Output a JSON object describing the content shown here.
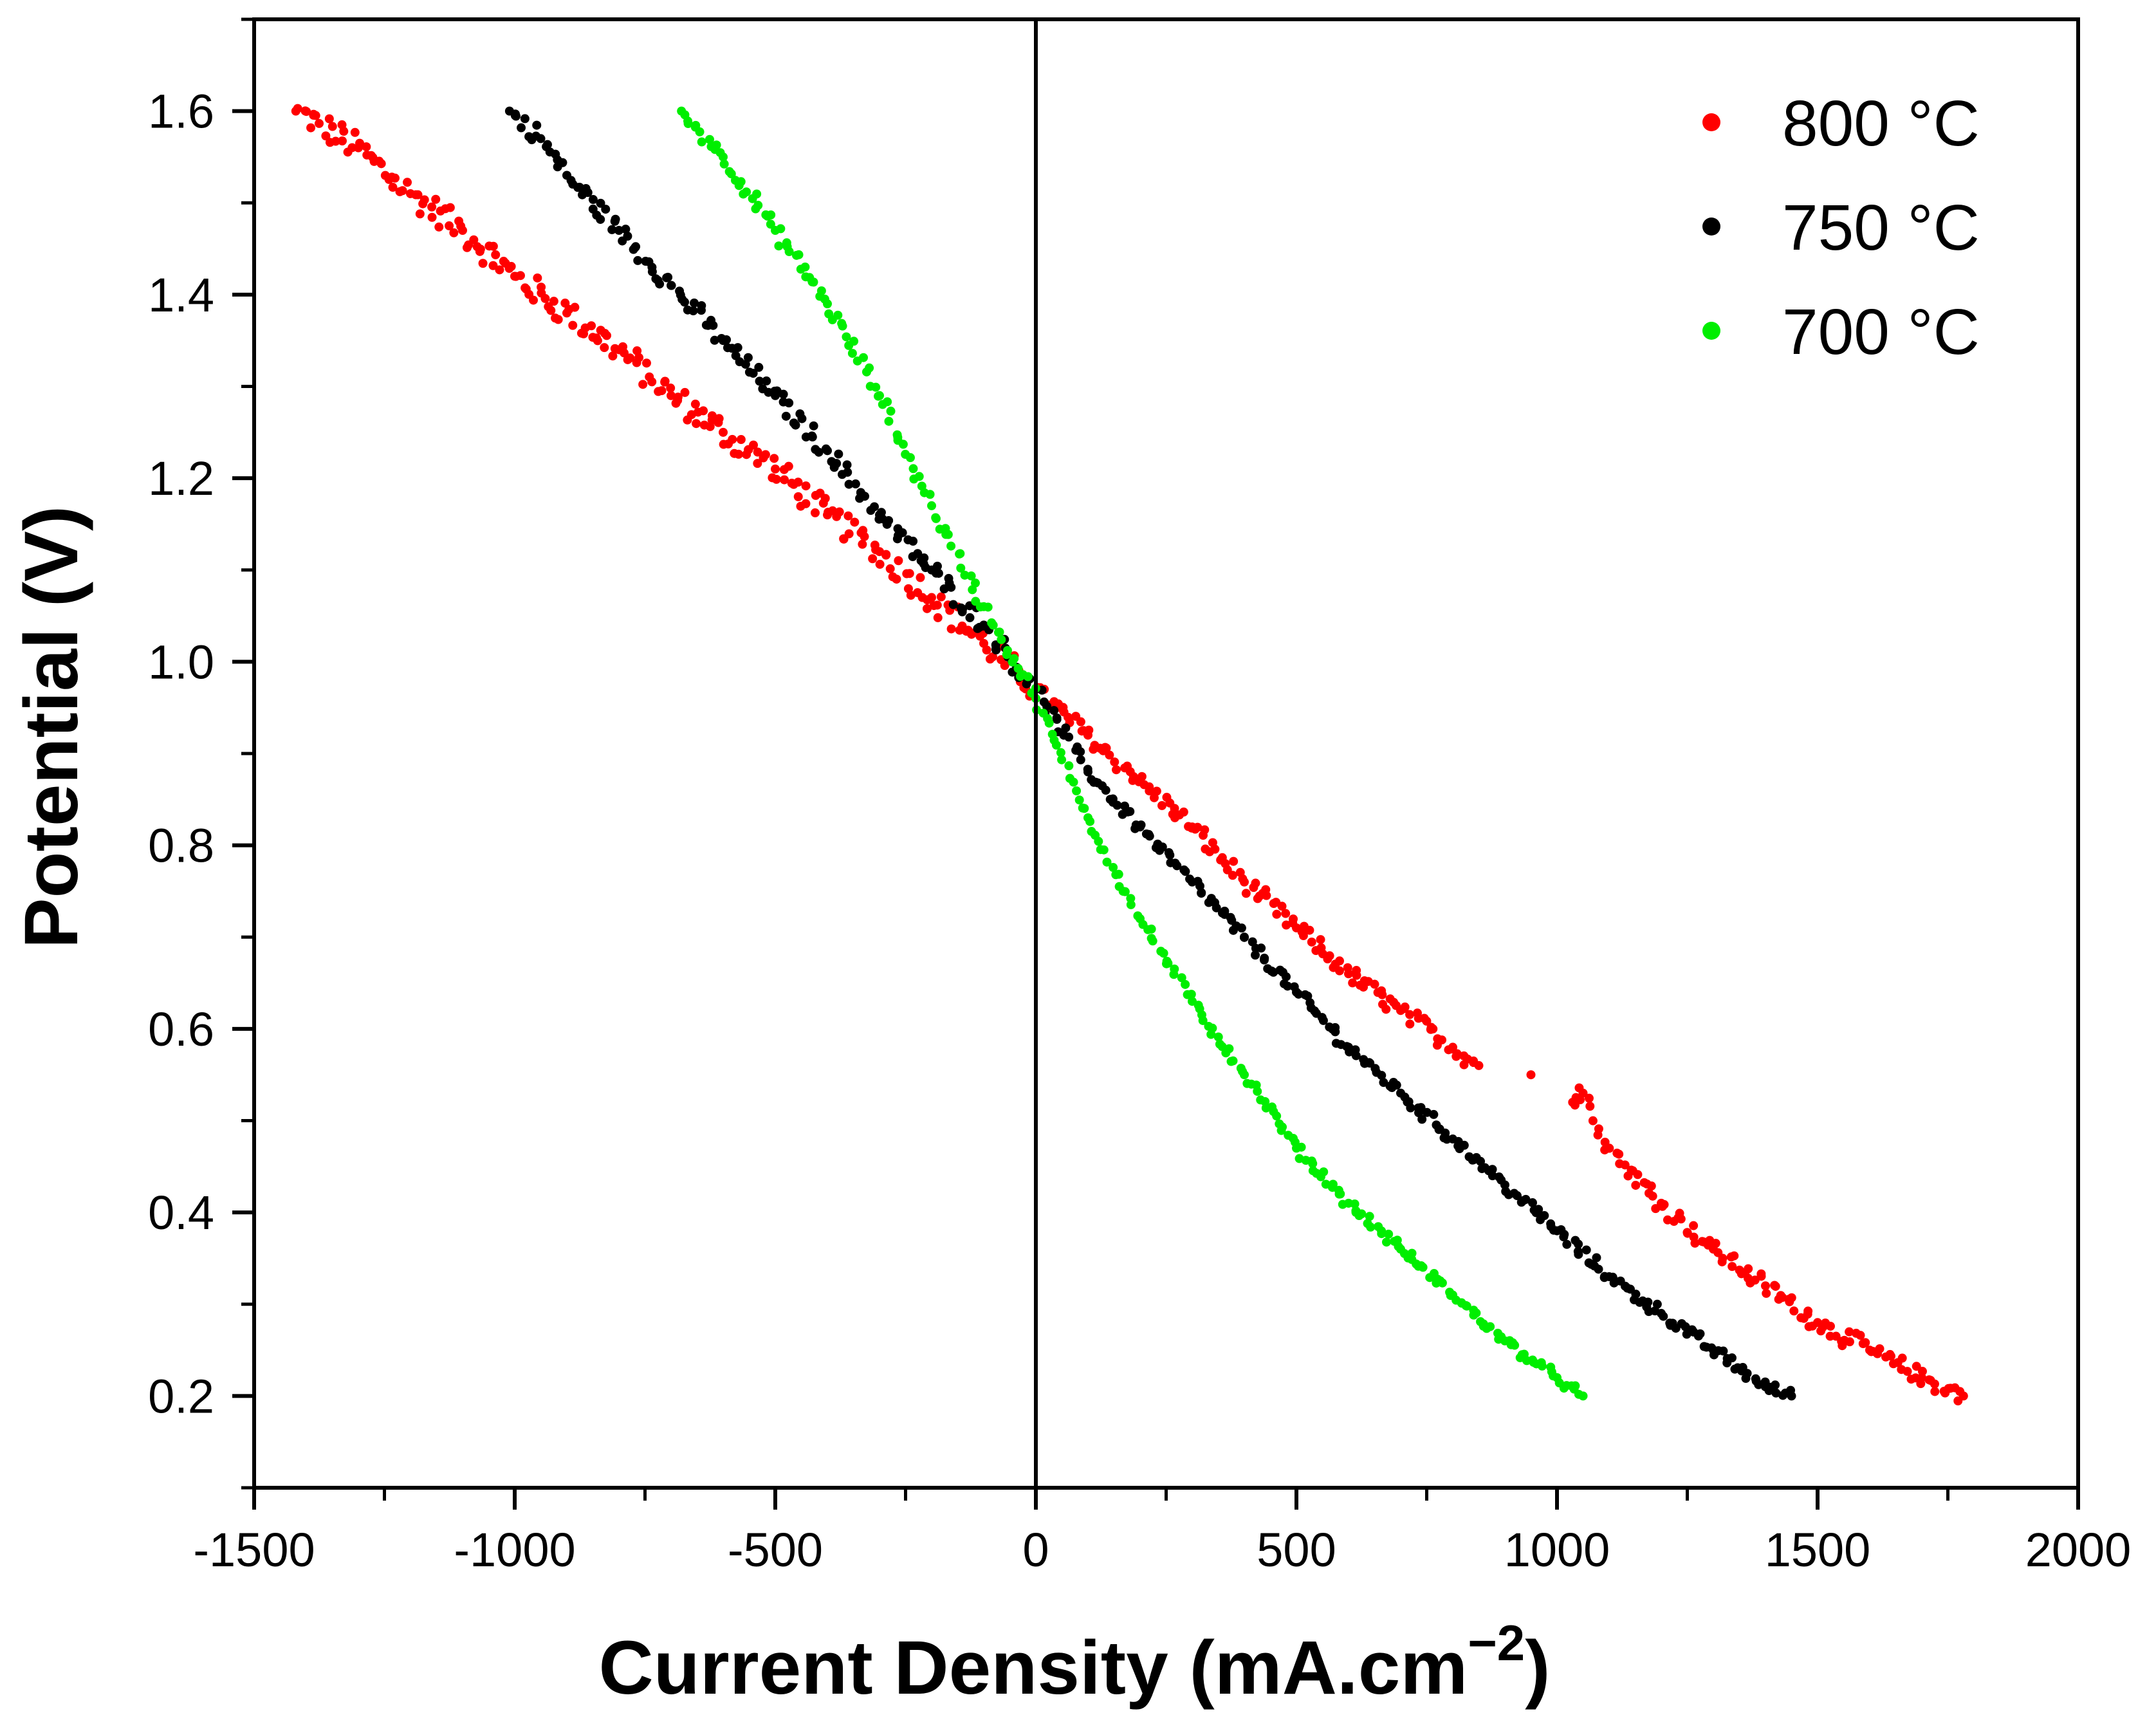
{
  "chart_data": {
    "type": "scatter",
    "title": "",
    "xlabel": "Current Density (mA.cm",
    "xlabel_sup": "−2",
    "xlabel_close": ")",
    "ylabel": "Potential (V)",
    "xlim": [
      -1500,
      2000
    ],
    "ylim": [
      0.1,
      1.7
    ],
    "x_ticks": [
      -1500,
      -1000,
      -500,
      0,
      500,
      1000,
      1500,
      2000
    ],
    "x_tick_labels": [
      "-1500",
      "-1000",
      "-500",
      "0",
      "500",
      "1000",
      "1500",
      "2000"
    ],
    "y_ticks": [
      0.2,
      0.4,
      0.6,
      0.8,
      1.0,
      1.2,
      1.4,
      1.6
    ],
    "y_tick_labels": [
      "0.2",
      "0.4",
      "0.6",
      "0.8",
      "1.0",
      "1.2",
      "1.4",
      "1.6"
    ],
    "grid": false,
    "zero_line_x": 0,
    "legend_position": "top-right",
    "series": [
      {
        "name": "800 °C",
        "color": "#ff0000",
        "x": [
          -1420,
          -1300,
          -1200,
          -1100,
          -1000,
          -900,
          -800,
          -700,
          -600,
          -500,
          -400,
          -300,
          -200,
          -100,
          0,
          100,
          200,
          300,
          400,
          500,
          600,
          700,
          800,
          850,
          950,
          1030,
          1050,
          1100,
          1200,
          1300,
          1400,
          1500,
          1600,
          1700,
          1780
        ],
        "y": [
          1.6,
          1.56,
          1.51,
          1.47,
          1.42,
          1.38,
          1.34,
          1.29,
          1.25,
          1.21,
          1.16,
          1.12,
          1.07,
          1.02,
          0.97,
          0.92,
          0.87,
          0.82,
          0.76,
          0.71,
          0.66,
          0.62,
          0.58,
          0.56,
          0.55,
          0.52,
          0.53,
          0.47,
          0.41,
          0.36,
          0.32,
          0.28,
          0.25,
          0.22,
          0.2
        ]
      },
      {
        "name": "750 °C",
        "color": "#000000",
        "x": [
          -1010,
          -950,
          -900,
          -800,
          -700,
          -600,
          -500,
          -400,
          -300,
          -200,
          -100,
          0,
          100,
          200,
          300,
          400,
          500,
          600,
          700,
          800,
          900,
          1000,
          1100,
          1200,
          1300,
          1400,
          1450
        ],
        "y": [
          1.6,
          1.57,
          1.53,
          1.47,
          1.41,
          1.35,
          1.29,
          1.23,
          1.16,
          1.1,
          1.04,
          0.97,
          0.88,
          0.82,
          0.76,
          0.7,
          0.64,
          0.58,
          0.53,
          0.48,
          0.43,
          0.38,
          0.33,
          0.29,
          0.25,
          0.21,
          0.2
        ]
      },
      {
        "name": "700 °C",
        "color": "#00ee00",
        "x": [
          -680,
          -600,
          -500,
          -400,
          -300,
          -200,
          -100,
          0,
          100,
          200,
          300,
          400,
          500,
          600,
          700,
          800,
          900,
          1000,
          1050
        ],
        "y": [
          1.6,
          1.55,
          1.47,
          1.39,
          1.29,
          1.17,
          1.06,
          0.96,
          0.83,
          0.72,
          0.63,
          0.55,
          0.47,
          0.41,
          0.36,
          0.31,
          0.26,
          0.22,
          0.2
        ]
      }
    ]
  }
}
